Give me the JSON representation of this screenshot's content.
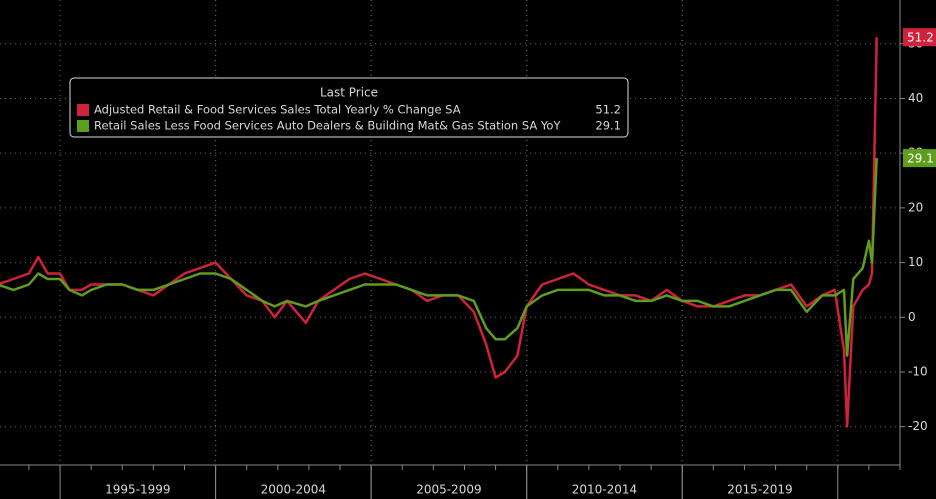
{
  "chart_data": {
    "type": "line",
    "legend_title": "Last Price",
    "x": [
      1993.0,
      1993.5,
      1994.0,
      1994.3,
      1994.6,
      1995.0,
      1995.3,
      1995.7,
      1996.0,
      1996.5,
      1997.0,
      1997.5,
      1998.0,
      1998.5,
      1999.0,
      1999.5,
      2000.0,
      2000.5,
      2001.0,
      2001.5,
      2001.9,
      2002.3,
      2002.9,
      2003.3,
      2003.8,
      2004.3,
      2004.8,
      2005.3,
      2005.8,
      2006.3,
      2006.8,
      2007.3,
      2007.8,
      2008.3,
      2008.7,
      2009.0,
      2009.3,
      2009.7,
      2010.0,
      2010.5,
      2011.0,
      2011.5,
      2012.0,
      2012.5,
      2013.0,
      2013.5,
      2014.0,
      2014.5,
      2015.0,
      2015.5,
      2016.0,
      2016.5,
      2017.0,
      2017.5,
      2018.0,
      2018.5,
      2019.0,
      2019.5,
      2019.9,
      2020.2,
      2020.3,
      2020.5,
      2020.8,
      2021.0,
      2021.1,
      2021.25
    ],
    "series": [
      {
        "name": "Adjusted Retail & Food Services Sales Total Yearly % Change SA",
        "color": "#d0223a",
        "values": [
          6,
          7,
          8,
          11,
          8,
          8,
          5,
          5,
          6,
          6,
          6,
          5,
          4,
          6,
          8,
          9,
          10,
          7,
          4,
          3,
          0,
          3,
          -1,
          3,
          5,
          7,
          8,
          7,
          6,
          5,
          3,
          4,
          4,
          1,
          -5,
          -11,
          -10,
          -7,
          2,
          6,
          7,
          8,
          6,
          5,
          4,
          4,
          3,
          5,
          3,
          2,
          2,
          3,
          4,
          4,
          5,
          6,
          2,
          4,
          5,
          -6,
          -19.9,
          2,
          5,
          6,
          8,
          51.2
        ]
      },
      {
        "name": "Retail Sales Less Food Services Auto Dealers & Building Mat& Gas Station SA YoY",
        "color": "#5e9e1c",
        "values": [
          6,
          5,
          6,
          8,
          7,
          7,
          5,
          4,
          5,
          6,
          6,
          5,
          5,
          6,
          7,
          8,
          8,
          7,
          5,
          3,
          2,
          3,
          2,
          3,
          4,
          5,
          6,
          6,
          6,
          5,
          4,
          4,
          4,
          3,
          -2,
          -4,
          -4,
          -2,
          2,
          4,
          5,
          5,
          5,
          4,
          4,
          3,
          3,
          4,
          3,
          3,
          2,
          2,
          3,
          4,
          5,
          5,
          1,
          4,
          4,
          5,
          -7,
          7,
          9,
          14,
          10,
          29.1
        ]
      }
    ],
    "xlim": [
      1993.07,
      2022.0
    ],
    "xticks": [
      {
        "value": 1997.5,
        "label": "1995-1999"
      },
      {
        "value": 2002.5,
        "label": "2000-2004"
      },
      {
        "value": 2007.5,
        "label": "2005-2009"
      },
      {
        "value": 2012.5,
        "label": "2010-2014"
      },
      {
        "value": 2017.5,
        "label": "2015-2019"
      }
    ],
    "ylim": [
      -27,
      58
    ],
    "yticks": [
      -20,
      -10,
      0,
      10,
      20,
      30,
      40,
      50
    ],
    "grid": true,
    "legend": "upper left"
  }
}
